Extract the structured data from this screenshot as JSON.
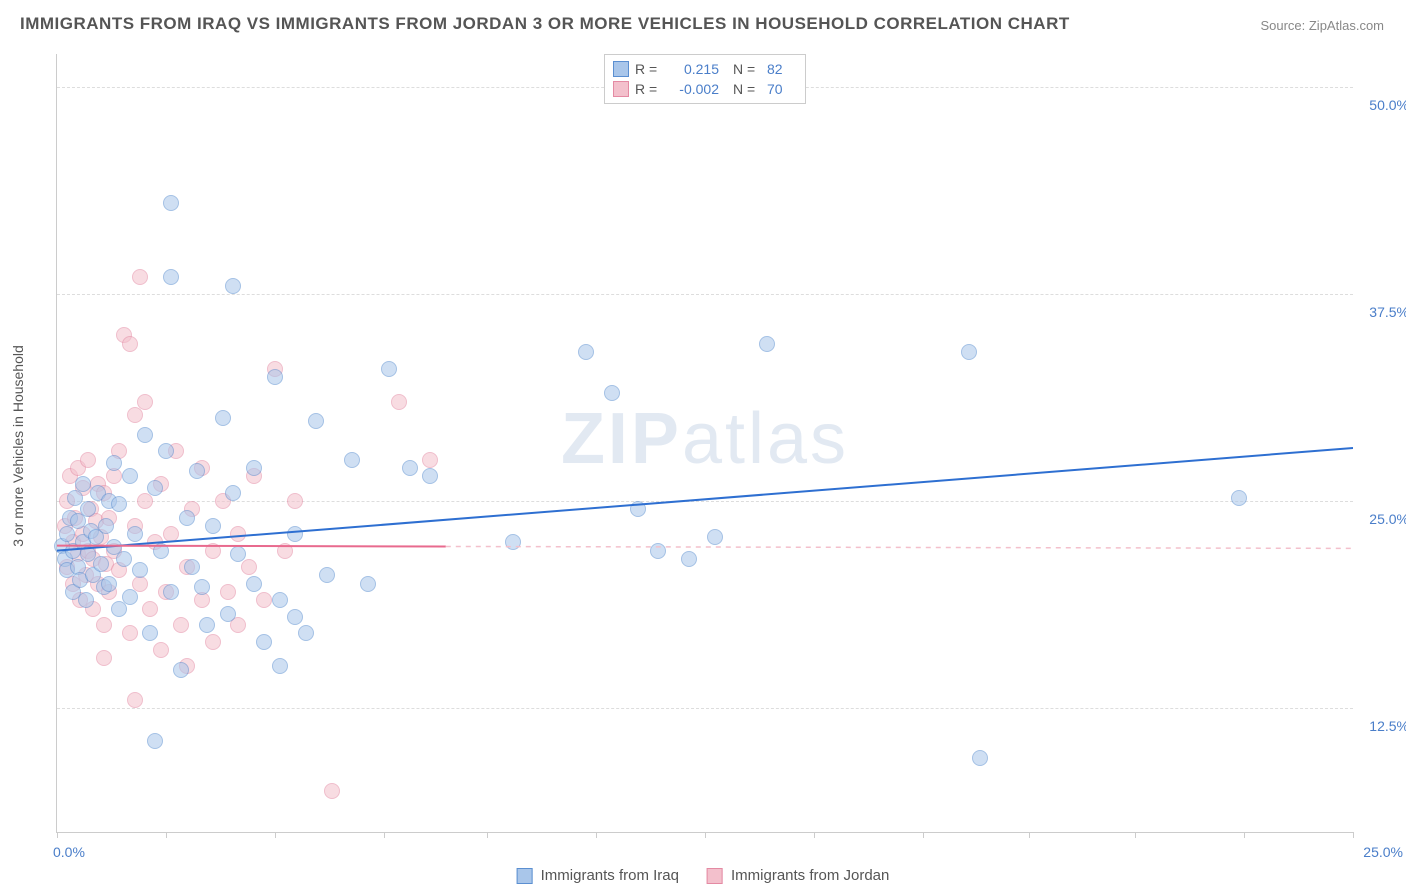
{
  "title": "IMMIGRANTS FROM IRAQ VS IMMIGRANTS FROM JORDAN 3 OR MORE VEHICLES IN HOUSEHOLD CORRELATION CHART",
  "source": "Source: ZipAtlas.com",
  "ylabel": "3 or more Vehicles in Household",
  "watermark_bold": "ZIP",
  "watermark_rest": "atlas",
  "chart": {
    "type": "scatter",
    "xlim": [
      0,
      25
    ],
    "ylim": [
      5,
      52
    ],
    "xticks": [
      0,
      2.1,
      4.2,
      6.3,
      8.3,
      10.4,
      12.5,
      14.6,
      16.7,
      18.75,
      20.8,
      22.9,
      25
    ],
    "xtick_labels": {
      "0": "0.0%",
      "25": "25.0%"
    },
    "ygrid": [
      12.5,
      25.0,
      37.5,
      50.0
    ],
    "ytick_labels": [
      "12.5%",
      "25.0%",
      "37.5%",
      "50.0%"
    ],
    "background": "#ffffff",
    "grid_color": "#dddddd",
    "axis_color": "#cccccc",
    "marker_radius": 8,
    "marker_opacity": 0.55,
    "series": [
      {
        "name": "Immigrants from Iraq",
        "color_fill": "#a9c6ea",
        "color_stroke": "#5b8fd1",
        "r_label": "R =",
        "r_value": "0.215",
        "n_label": "N =",
        "n_value": "82",
        "trend": {
          "x1": 0,
          "y1": 22.0,
          "x2": 25,
          "y2": 28.2,
          "color": "#2e6fd1",
          "width": 2,
          "dash_extend_color": "#a9c6ea"
        },
        "points": [
          [
            0.1,
            22.3
          ],
          [
            0.15,
            21.5
          ],
          [
            0.2,
            23.0
          ],
          [
            0.2,
            20.8
          ],
          [
            0.25,
            24.0
          ],
          [
            0.3,
            19.5
          ],
          [
            0.3,
            22.0
          ],
          [
            0.35,
            25.2
          ],
          [
            0.4,
            21.0
          ],
          [
            0.4,
            23.8
          ],
          [
            0.45,
            20.2
          ],
          [
            0.5,
            22.5
          ],
          [
            0.5,
            26.0
          ],
          [
            0.55,
            19.0
          ],
          [
            0.6,
            21.8
          ],
          [
            0.6,
            24.5
          ],
          [
            0.65,
            23.2
          ],
          [
            0.7,
            20.5
          ],
          [
            0.75,
            22.8
          ],
          [
            0.8,
            25.5
          ],
          [
            0.85,
            21.2
          ],
          [
            0.9,
            19.8
          ],
          [
            0.95,
            23.5
          ],
          [
            1.0,
            25.0
          ],
          [
            1.0,
            20.0
          ],
          [
            1.1,
            27.3
          ],
          [
            1.1,
            22.2
          ],
          [
            1.2,
            18.5
          ],
          [
            1.2,
            24.8
          ],
          [
            1.3,
            21.5
          ],
          [
            1.4,
            26.5
          ],
          [
            1.4,
            19.2
          ],
          [
            1.5,
            23.0
          ],
          [
            1.6,
            20.8
          ],
          [
            1.7,
            29.0
          ],
          [
            1.8,
            17.0
          ],
          [
            1.9,
            10.5
          ],
          [
            1.9,
            25.8
          ],
          [
            2.0,
            22.0
          ],
          [
            2.1,
            28.0
          ],
          [
            2.2,
            38.5
          ],
          [
            2.2,
            43.0
          ],
          [
            2.2,
            19.5
          ],
          [
            2.4,
            14.8
          ],
          [
            2.5,
            24.0
          ],
          [
            2.6,
            21.0
          ],
          [
            2.7,
            26.8
          ],
          [
            2.8,
            19.8
          ],
          [
            2.9,
            17.5
          ],
          [
            3.0,
            23.5
          ],
          [
            3.2,
            30.0
          ],
          [
            3.3,
            18.2
          ],
          [
            3.4,
            25.5
          ],
          [
            3.4,
            38.0
          ],
          [
            3.5,
            21.8
          ],
          [
            3.8,
            27.0
          ],
          [
            3.8,
            20.0
          ],
          [
            4.0,
            16.5
          ],
          [
            4.2,
            32.5
          ],
          [
            4.3,
            19.0
          ],
          [
            4.3,
            15.0
          ],
          [
            4.6,
            23.0
          ],
          [
            4.6,
            18.0
          ],
          [
            4.8,
            17.0
          ],
          [
            5.0,
            29.8
          ],
          [
            5.2,
            20.5
          ],
          [
            5.7,
            27.5
          ],
          [
            6.0,
            20.0
          ],
          [
            6.4,
            33.0
          ],
          [
            6.8,
            27.0
          ],
          [
            7.2,
            26.5
          ],
          [
            8.8,
            22.5
          ],
          [
            10.2,
            34.0
          ],
          [
            10.7,
            31.5
          ],
          [
            11.2,
            24.5
          ],
          [
            11.6,
            22.0
          ],
          [
            12.2,
            21.5
          ],
          [
            12.7,
            22.8
          ],
          [
            13.7,
            34.5
          ],
          [
            17.6,
            34.0
          ],
          [
            17.8,
            9.5
          ],
          [
            22.8,
            25.2
          ]
        ]
      },
      {
        "name": "Immigrants from Jordan",
        "color_fill": "#f3c0cc",
        "color_stroke": "#e48aa3",
        "r_label": "R =",
        "r_value": "-0.002",
        "n_label": "N =",
        "n_value": "70",
        "trend": {
          "x1": 0,
          "y1": 22.3,
          "x2": 7.5,
          "y2": 22.25,
          "color": "#e86a8e",
          "width": 2,
          "dash_extend_color": "#f3c0cc"
        },
        "points": [
          [
            0.15,
            23.5
          ],
          [
            0.2,
            25.0
          ],
          [
            0.2,
            21.0
          ],
          [
            0.25,
            26.5
          ],
          [
            0.3,
            22.5
          ],
          [
            0.3,
            20.0
          ],
          [
            0.35,
            24.0
          ],
          [
            0.4,
            27.0
          ],
          [
            0.4,
            21.8
          ],
          [
            0.45,
            19.0
          ],
          [
            0.5,
            23.0
          ],
          [
            0.5,
            25.8
          ],
          [
            0.55,
            20.5
          ],
          [
            0.6,
            22.0
          ],
          [
            0.6,
            27.5
          ],
          [
            0.65,
            24.5
          ],
          [
            0.7,
            21.5
          ],
          [
            0.7,
            18.5
          ],
          [
            0.75,
            23.8
          ],
          [
            0.8,
            26.0
          ],
          [
            0.8,
            20.0
          ],
          [
            0.85,
            22.8
          ],
          [
            0.9,
            25.5
          ],
          [
            0.9,
            17.5
          ],
          [
            0.95,
            21.2
          ],
          [
            1.0,
            24.0
          ],
          [
            1.0,
            19.5
          ],
          [
            1.1,
            26.5
          ],
          [
            1.1,
            22.0
          ],
          [
            1.2,
            20.8
          ],
          [
            1.2,
            28.0
          ],
          [
            1.3,
            35.0
          ],
          [
            1.4,
            34.5
          ],
          [
            1.4,
            17.0
          ],
          [
            1.5,
            13.0
          ],
          [
            1.5,
            23.5
          ],
          [
            1.6,
            38.5
          ],
          [
            1.6,
            20.0
          ],
          [
            1.7,
            25.0
          ],
          [
            1.7,
            31.0
          ],
          [
            1.8,
            18.5
          ],
          [
            1.9,
            22.5
          ],
          [
            2.0,
            26.0
          ],
          [
            2.0,
            16.0
          ],
          [
            2.1,
            19.5
          ],
          [
            2.2,
            23.0
          ],
          [
            2.3,
            28.0
          ],
          [
            2.4,
            17.5
          ],
          [
            2.5,
            21.0
          ],
          [
            2.6,
            24.5
          ],
          [
            2.8,
            19.0
          ],
          [
            2.8,
            27.0
          ],
          [
            3.0,
            22.0
          ],
          [
            3.0,
            16.5
          ],
          [
            3.2,
            25.0
          ],
          [
            3.3,
            19.5
          ],
          [
            3.5,
            23.0
          ],
          [
            3.7,
            21.0
          ],
          [
            3.8,
            26.5
          ],
          [
            4.0,
            19.0
          ],
          [
            4.2,
            33.0
          ],
          [
            4.4,
            22.0
          ],
          [
            4.6,
            25.0
          ],
          [
            5.3,
            7.5
          ],
          [
            1.5,
            30.2
          ],
          [
            0.9,
            15.5
          ],
          [
            2.5,
            15.0
          ],
          [
            3.5,
            17.5
          ],
          [
            6.6,
            31.0
          ],
          [
            7.2,
            27.5
          ]
        ]
      }
    ]
  },
  "legend_bottom": [
    {
      "label": "Immigrants from Iraq",
      "fill": "#a9c6ea",
      "stroke": "#5b8fd1"
    },
    {
      "label": "Immigrants from Jordan",
      "fill": "#f3c0cc",
      "stroke": "#e48aa3"
    }
  ]
}
